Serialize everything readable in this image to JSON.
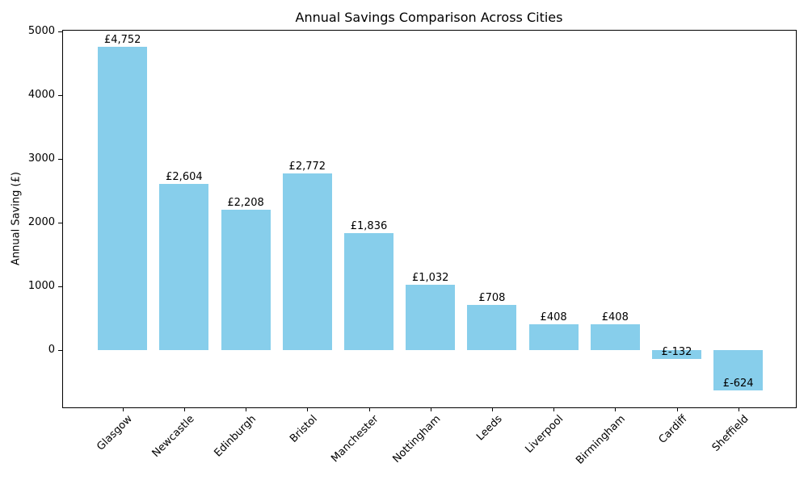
{
  "chart_data": {
    "type": "bar",
    "title": "Annual Savings Comparison Across Cities",
    "xlabel": "",
    "ylabel": "Annual Saving (£)",
    "categories": [
      "Glasgow",
      "Newcastle",
      "Edinburgh",
      "Bristol",
      "Manchester",
      "Nottingham",
      "Leeds",
      "Liverpool",
      "Birmingham",
      "Cardiff",
      "Sheffield"
    ],
    "values": [
      4752,
      2604,
      2208,
      2772,
      1836,
      1032,
      708,
      408,
      408,
      -132,
      -624
    ],
    "bar_labels": [
      "£4,752",
      "£2,604",
      "£2,208",
      "£2,772",
      "£1,836",
      "£1,032",
      "£708",
      "£408",
      "£408",
      "£-132",
      "£-624"
    ],
    "bar_color": "#87CEEB",
    "text_color": "#000000",
    "spine_color": "#000000",
    "yticks": [
      0,
      1000,
      2000,
      3000,
      4000,
      5000
    ],
    "ylim": [
      -893,
      5021
    ],
    "grid": false,
    "legend": null,
    "xtick_rotation_deg": 45
  }
}
